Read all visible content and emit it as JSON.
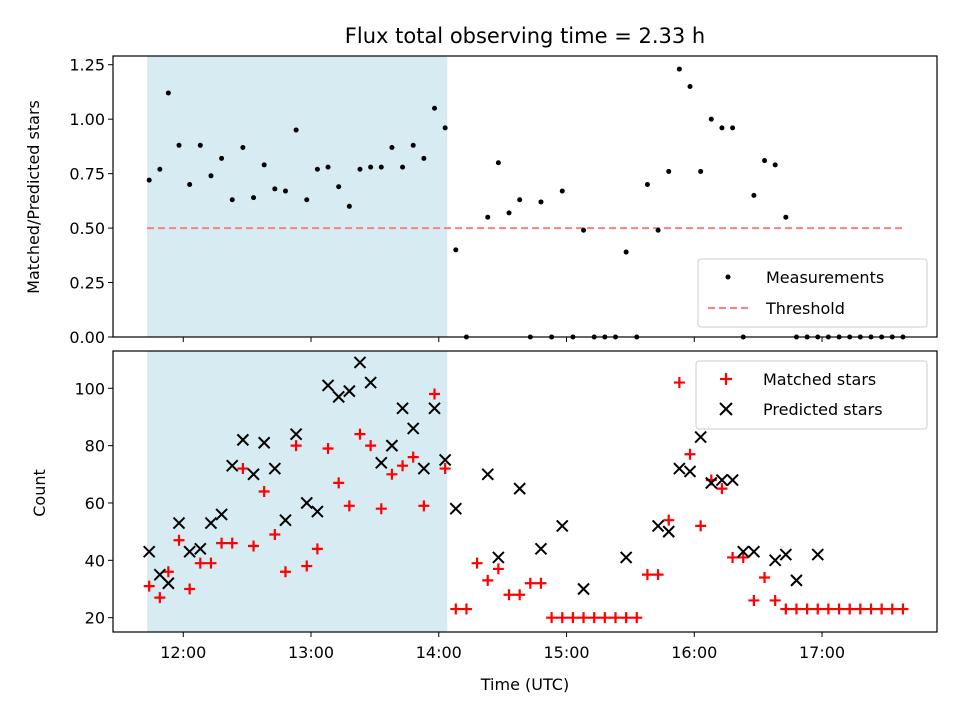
{
  "chart_data": [
    {
      "type": "scatter",
      "title": "Flux total observing time = 2.33 h",
      "ylabel": "Matched/Predicted stars",
      "ylim": [
        0,
        1.29
      ],
      "xlim": [
        "11:27",
        "17:54"
      ],
      "y_ticks": [
        "0.00",
        "0.25",
        "0.50",
        "0.75",
        "1.00",
        "1.25"
      ],
      "legend_position": "lower-right",
      "shaded_interval": {
        "start": "11:43",
        "end": "14:04",
        "color": "#add8e6"
      },
      "series": [
        {
          "name": "Measurements",
          "marker": "dot",
          "color": "#000000",
          "x": [
            "11:44",
            "11:49",
            "11:53",
            "11:58",
            "12:03",
            "12:08",
            "12:13",
            "12:18",
            "12:23",
            "12:28",
            "12:33",
            "12:38",
            "12:43",
            "12:48",
            "12:53",
            "12:58",
            "13:03",
            "13:08",
            "13:13",
            "13:18",
            "13:23",
            "13:28",
            "13:33",
            "13:38",
            "13:43",
            "13:48",
            "13:53",
            "13:58",
            "14:03",
            "14:08",
            "14:13",
            "14:23",
            "14:28",
            "14:33",
            "14:38",
            "14:43",
            "14:48",
            "14:53",
            "14:58",
            "15:03",
            "15:08",
            "15:13",
            "15:18",
            "15:23",
            "15:28",
            "15:33",
            "15:38",
            "15:43",
            "15:48",
            "15:53",
            "15:58",
            "16:03",
            "16:08",
            "16:13",
            "16:18",
            "16:23",
            "16:28",
            "16:33",
            "16:38",
            "16:43",
            "16:48",
            "16:53",
            "16:58",
            "17:03",
            "17:08",
            "17:13",
            "17:18",
            "17:23",
            "17:28",
            "17:33",
            "17:38"
          ],
          "y": [
            0.72,
            0.77,
            1.12,
            0.88,
            0.7,
            0.88,
            0.74,
            0.82,
            0.63,
            0.87,
            0.64,
            0.79,
            0.68,
            0.67,
            0.95,
            0.63,
            0.77,
            0.78,
            0.69,
            0.6,
            0.77,
            0.78,
            0.78,
            0.87,
            0.78,
            0.88,
            0.82,
            1.05,
            0.96,
            0.4,
            0.0,
            0.55,
            0.8,
            0.57,
            0.63,
            0.0,
            0.62,
            0.0,
            0.67,
            0.0,
            0.49,
            0.0,
            0.0,
            0.0,
            0.39,
            0.0,
            0.7,
            0.49,
            0.76,
            1.23,
            1.15,
            0.76,
            1.0,
            0.96,
            0.96,
            0.0,
            0.65,
            0.81,
            0.79,
            0.55,
            0.0,
            0.0,
            0.0,
            0.0,
            0.0,
            0.0,
            0.0,
            0.0,
            0.0,
            0.0,
            0.0
          ]
        },
        {
          "name": "Threshold",
          "marker": "dashed-line",
          "color": "#ff7f7f",
          "x": [
            "11:43",
            "17:38"
          ],
          "y": [
            0.5,
            0.5
          ]
        }
      ]
    },
    {
      "type": "scatter",
      "xlabel": "Time (UTC)",
      "ylabel": "Count",
      "ylim": [
        15,
        113
      ],
      "xlim": [
        "11:27",
        "17:54"
      ],
      "x_ticks": [
        "12:00",
        "13:00",
        "14:00",
        "15:00",
        "16:00",
        "17:00"
      ],
      "y_ticks": [
        "20",
        "40",
        "60",
        "80",
        "100"
      ],
      "legend_position": "upper-right",
      "shaded_interval": {
        "start": "11:43",
        "end": "14:04",
        "color": "#add8e6"
      },
      "series": [
        {
          "name": "Matched stars",
          "marker": "plus",
          "color": "#ff0000",
          "x": [
            "11:44",
            "11:49",
            "11:53",
            "11:58",
            "12:03",
            "12:08",
            "12:13",
            "12:18",
            "12:23",
            "12:28",
            "12:33",
            "12:38",
            "12:43",
            "12:48",
            "12:53",
            "12:58",
            "13:03",
            "13:08",
            "13:13",
            "13:18",
            "13:23",
            "13:28",
            "13:33",
            "13:38",
            "13:43",
            "13:48",
            "13:53",
            "13:58",
            "14:03",
            "14:08",
            "14:13",
            "14:18",
            "14:23",
            "14:28",
            "14:33",
            "14:38",
            "14:43",
            "14:48",
            "14:53",
            "14:58",
            "15:03",
            "15:08",
            "15:13",
            "15:18",
            "15:23",
            "15:28",
            "15:33",
            "15:38",
            "15:43",
            "15:48",
            "15:53",
            "15:58",
            "16:03",
            "16:08",
            "16:13",
            "16:18",
            "16:23",
            "16:28",
            "16:33",
            "16:38",
            "16:43",
            "16:48",
            "16:53",
            "16:58",
            "17:03",
            "17:08",
            "17:13",
            "17:18",
            "17:23",
            "17:28",
            "17:33",
            "17:38"
          ],
          "y": [
            31,
            27,
            36,
            47,
            30,
            39,
            39,
            46,
            46,
            72,
            45,
            64,
            49,
            36,
            80,
            38,
            44,
            79,
            67,
            59,
            84,
            80,
            58,
            70,
            73,
            76,
            59,
            98,
            72,
            23,
            23,
            39,
            33,
            37,
            28,
            28,
            32,
            32,
            20,
            20,
            20,
            20,
            20,
            20,
            20,
            20,
            20,
            35,
            35,
            54,
            102,
            77,
            52,
            68,
            65,
            41,
            41,
            26,
            34,
            26,
            23,
            23,
            23,
            23,
            23,
            23,
            23,
            23,
            23,
            23,
            23,
            23
          ]
        },
        {
          "name": "Predicted stars",
          "marker": "x",
          "color": "#000000",
          "x": [
            "11:44",
            "11:49",
            "11:53",
            "11:58",
            "12:03",
            "12:08",
            "12:13",
            "12:18",
            "12:23",
            "12:28",
            "12:33",
            "12:38",
            "12:43",
            "12:48",
            "12:53",
            "12:58",
            "13:03",
            "13:08",
            "13:13",
            "13:18",
            "13:23",
            "13:28",
            "13:33",
            "13:38",
            "13:43",
            "13:48",
            "13:53",
            "13:58",
            "14:03",
            "14:08",
            "14:23",
            "14:28",
            "14:38",
            "14:48",
            "14:58",
            "15:08",
            "15:28",
            "15:43",
            "15:48",
            "15:53",
            "15:58",
            "16:03",
            "16:08",
            "16:13",
            "16:18",
            "16:23",
            "16:28",
            "16:38",
            "16:43",
            "16:48",
            "16:58"
          ],
          "y": [
            43,
            35,
            32,
            53,
            43,
            44,
            53,
            56,
            73,
            82,
            70,
            81,
            72,
            54,
            84,
            60,
            57,
            101,
            97,
            99,
            109,
            102,
            74,
            80,
            93,
            86,
            72,
            93,
            75,
            58,
            70,
            41,
            65,
            44,
            52,
            30,
            41,
            52,
            50,
            72,
            71,
            83,
            67,
            68,
            68,
            43,
            43,
            40,
            42,
            33,
            42
          ]
        }
      ]
    }
  ]
}
